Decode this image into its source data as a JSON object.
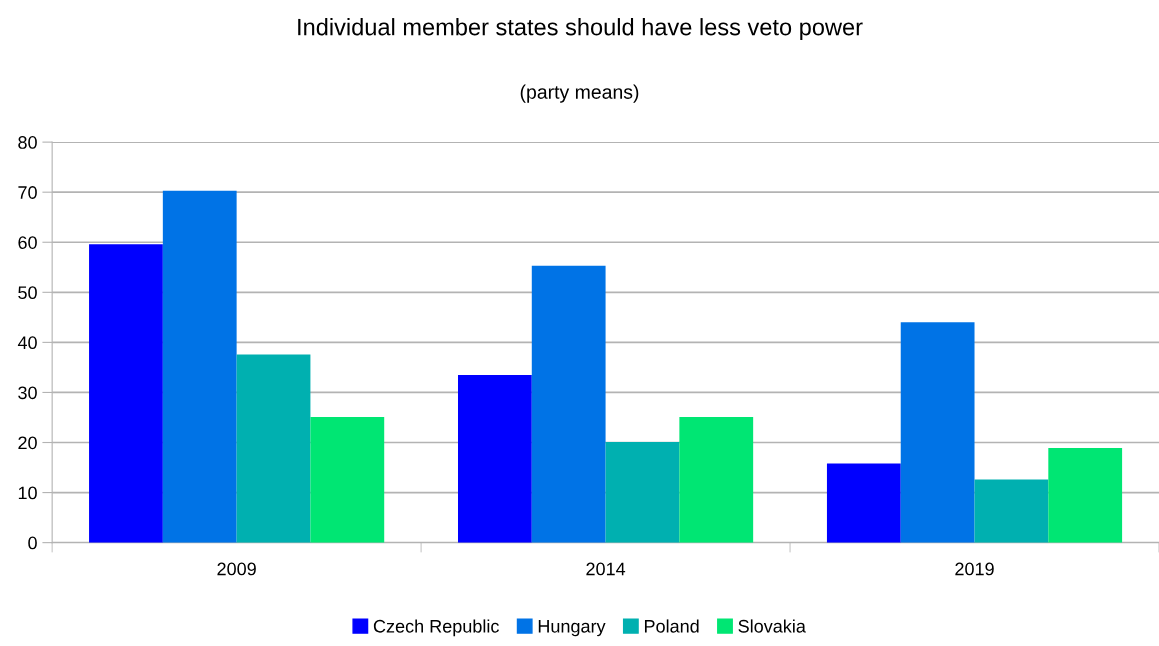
{
  "chart_data": {
    "type": "bar",
    "title": "Individual member states should have less veto power",
    "subtitle": "(party means)",
    "categories": [
      "2009",
      "2014",
      "2019"
    ],
    "series": [
      {
        "name": "Czech Republic",
        "color": "#0000ff",
        "values": [
          59.6,
          33.5,
          15.8
        ]
      },
      {
        "name": "Hungary",
        "color": "#0073e6",
        "values": [
          70.3,
          55.3,
          44.0
        ]
      },
      {
        "name": "Poland",
        "color": "#00b0b0",
        "values": [
          37.6,
          20.1,
          12.6
        ]
      },
      {
        "name": "Slovakia",
        "color": "#00e673",
        "values": [
          25.1,
          25.1,
          18.9
        ]
      }
    ],
    "ylim": [
      0,
      80
    ],
    "yticks": [
      0,
      10,
      20,
      30,
      40,
      50,
      60,
      70,
      80
    ],
    "grid": "y",
    "legend": "bottom"
  }
}
